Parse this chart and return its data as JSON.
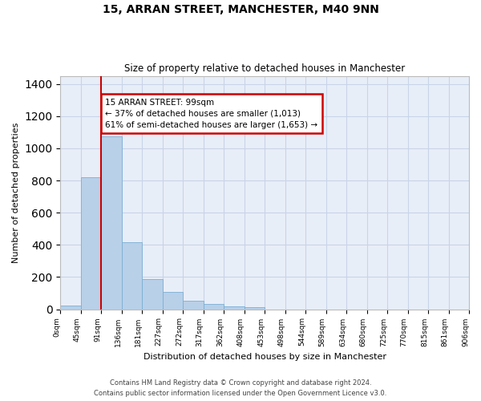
{
  "title_line1": "15, ARRAN STREET, MANCHESTER, M40 9NN",
  "title_line2": "Size of property relative to detached houses in Manchester",
  "xlabel": "Distribution of detached houses by size in Manchester",
  "ylabel": "Number of detached properties",
  "bar_values": [
    25,
    820,
    1075,
    415,
    185,
    105,
    55,
    35,
    20,
    15,
    0,
    0,
    0,
    0,
    0,
    0,
    0,
    0,
    0,
    0
  ],
  "tick_labels": [
    "0sqm",
    "45sqm",
    "91sqm",
    "136sqm",
    "181sqm",
    "227sqm",
    "272sqm",
    "317sqm",
    "362sqm",
    "408sqm",
    "453sqm",
    "498sqm",
    "544sqm",
    "589sqm",
    "634sqm",
    "680sqm",
    "725sqm",
    "770sqm",
    "815sqm",
    "861sqm",
    "906sqm"
  ],
  "bar_color": "#b8d0e8",
  "bar_edge_color": "#7bafd4",
  "grid_color": "#c8d4e8",
  "background_color": "#e8eef8",
  "vline_x_index": 2,
  "vline_color": "#cc0000",
  "annotation_text": "15 ARRAN STREET: 99sqm\n← 37% of detached houses are smaller (1,013)\n61% of semi-detached houses are larger (1,653) →",
  "annotation_box_color": "#cc0000",
  "ylim": [
    0,
    1450
  ],
  "yticks": [
    0,
    200,
    400,
    600,
    800,
    1000,
    1200,
    1400
  ],
  "footer_line1": "Contains HM Land Registry data © Crown copyright and database right 2024.",
  "footer_line2": "Contains public sector information licensed under the Open Government Licence v3.0."
}
